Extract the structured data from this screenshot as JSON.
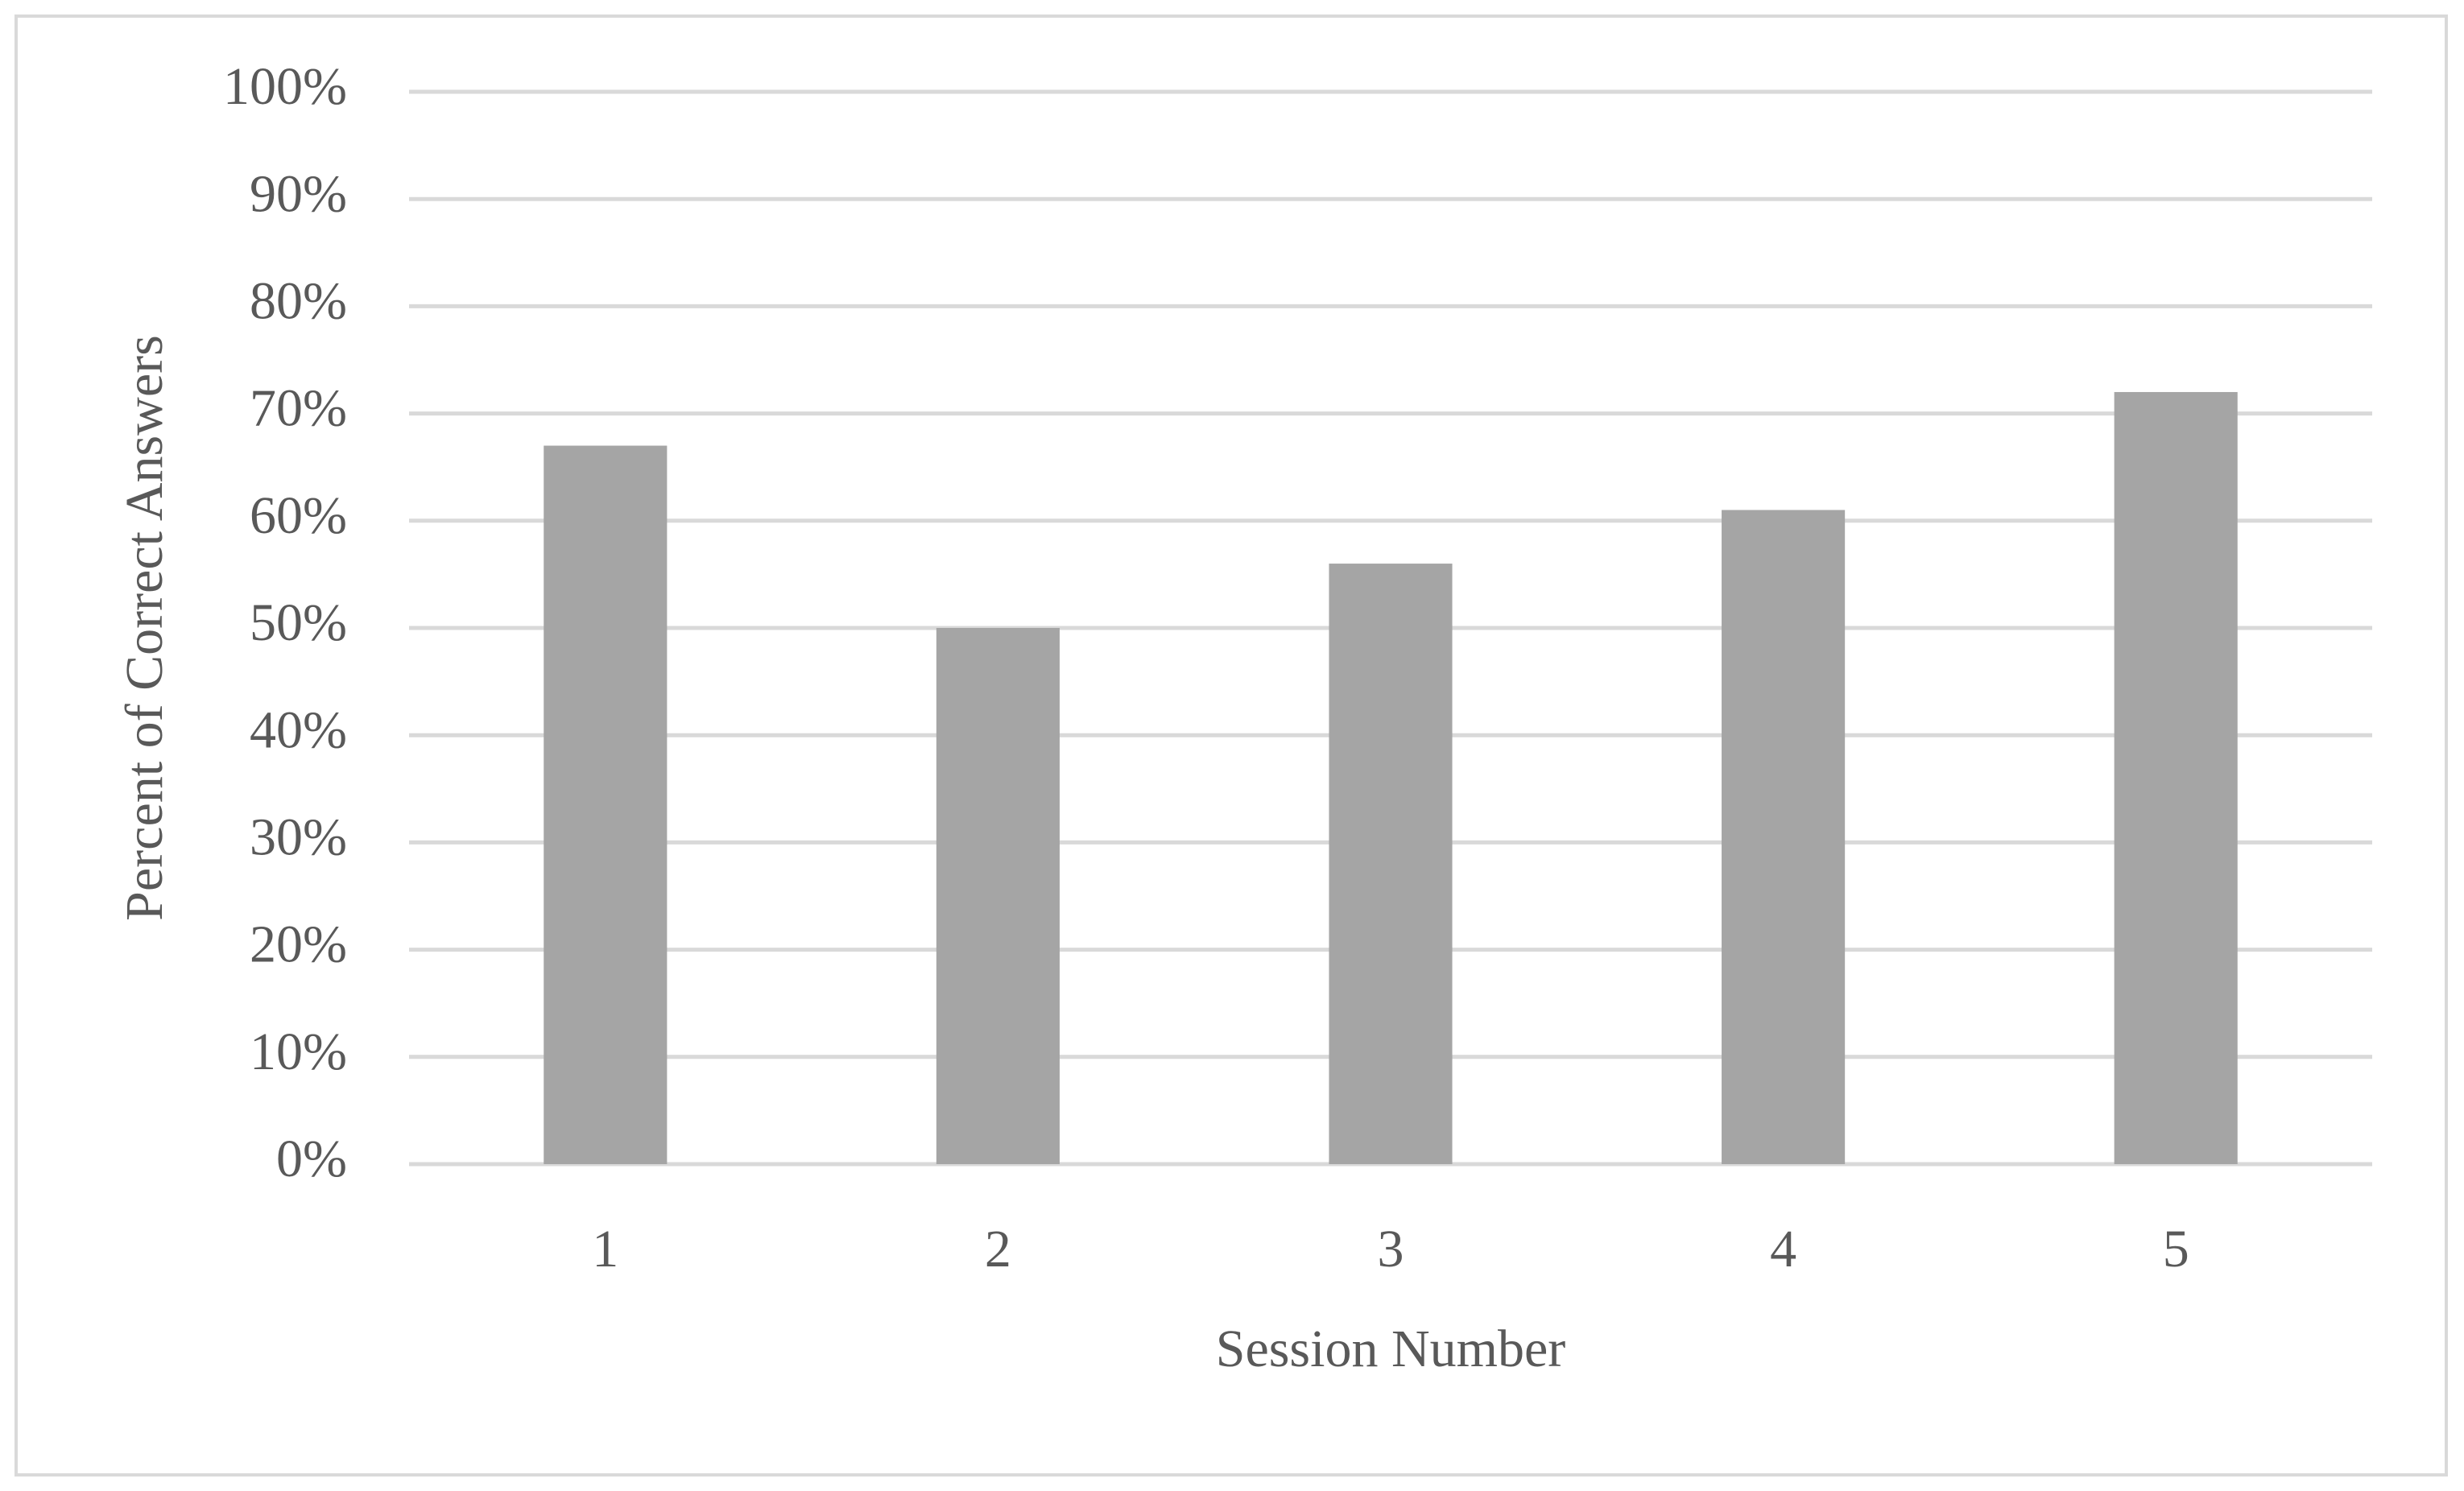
{
  "chart_data": {
    "type": "bar",
    "x_label": "Session Number",
    "y_label": "Percent of Correct Answers",
    "categories": [
      "1",
      "2",
      "3",
      "4",
      "5"
    ],
    "values": [
      67,
      50,
      56,
      61,
      72
    ],
    "color": "#a5a5a5",
    "ylim": [
      0,
      100
    ],
    "yticks": [
      {
        "value": 0,
        "label": "0%"
      },
      {
        "value": 10,
        "label": "10%"
      },
      {
        "value": 20,
        "label": "20%"
      },
      {
        "value": 30,
        "label": "30%"
      },
      {
        "value": 40,
        "label": "40%"
      },
      {
        "value": 50,
        "label": "50%"
      },
      {
        "value": 60,
        "label": "60%"
      },
      {
        "value": 70,
        "label": "70%"
      },
      {
        "value": 80,
        "label": "80%"
      },
      {
        "value": 90,
        "label": "90%"
      },
      {
        "value": 100,
        "label": "100%"
      }
    ],
    "grid": true
  }
}
